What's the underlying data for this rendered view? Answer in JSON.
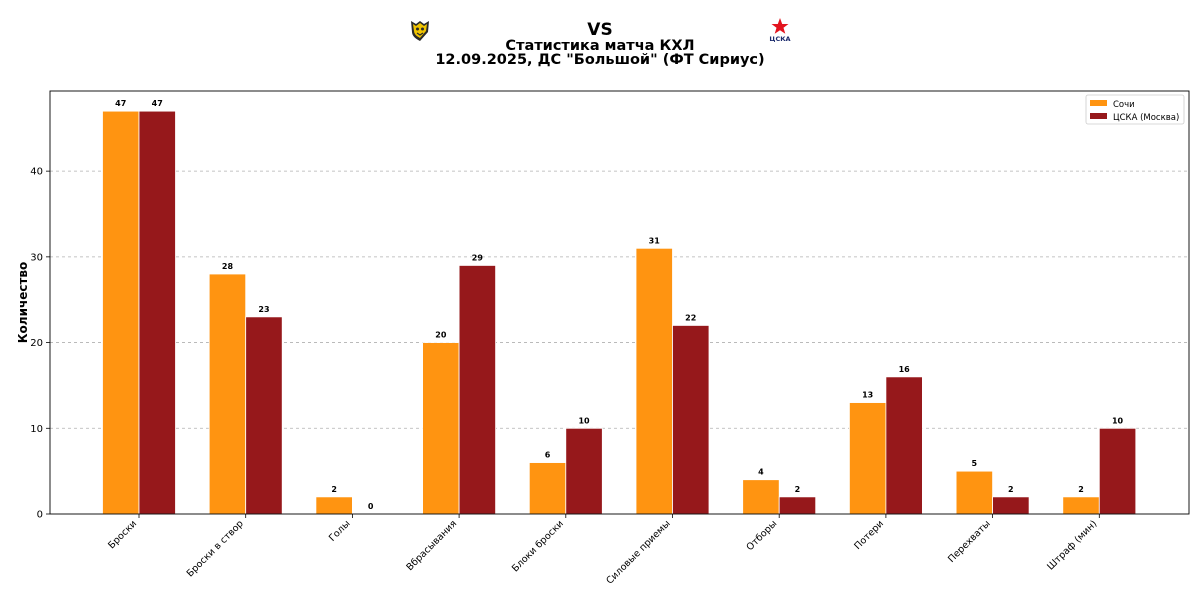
{
  "header": {
    "vs": "VS",
    "title": "Статистика матча КХЛ",
    "subtitle": "12.09.2025, ДС \"Большой\" (ФТ Сириус)",
    "home_logo": "sochi-logo",
    "away_logo": "cska-logo",
    "away_logo_text": "ЦСКА"
  },
  "chart_data": {
    "type": "bar",
    "title": "Статистика матча КХЛ",
    "xlabel": "",
    "ylabel": "Количество",
    "ylim": [
      0,
      49.35
    ],
    "yticks": [
      0,
      10,
      20,
      30,
      40
    ],
    "grid": true,
    "legend_position": "top-right",
    "categories": [
      "Броски",
      "Броски в створ",
      "Голы",
      "Вбрасывания",
      "Блоки броски",
      "Силовые приемы",
      "Отборы",
      "Потери",
      "Перехваты",
      "Штраф (мин)"
    ],
    "series": [
      {
        "name": "Сочи",
        "color": "#ff9411",
        "values": [
          47,
          28,
          2,
          20,
          6,
          31,
          4,
          13,
          5,
          2
        ]
      },
      {
        "name": "ЦСКА (Москва)",
        "color": "#96181b",
        "values": [
          47,
          23,
          0,
          29,
          10,
          22,
          2,
          16,
          2,
          10
        ]
      }
    ]
  }
}
